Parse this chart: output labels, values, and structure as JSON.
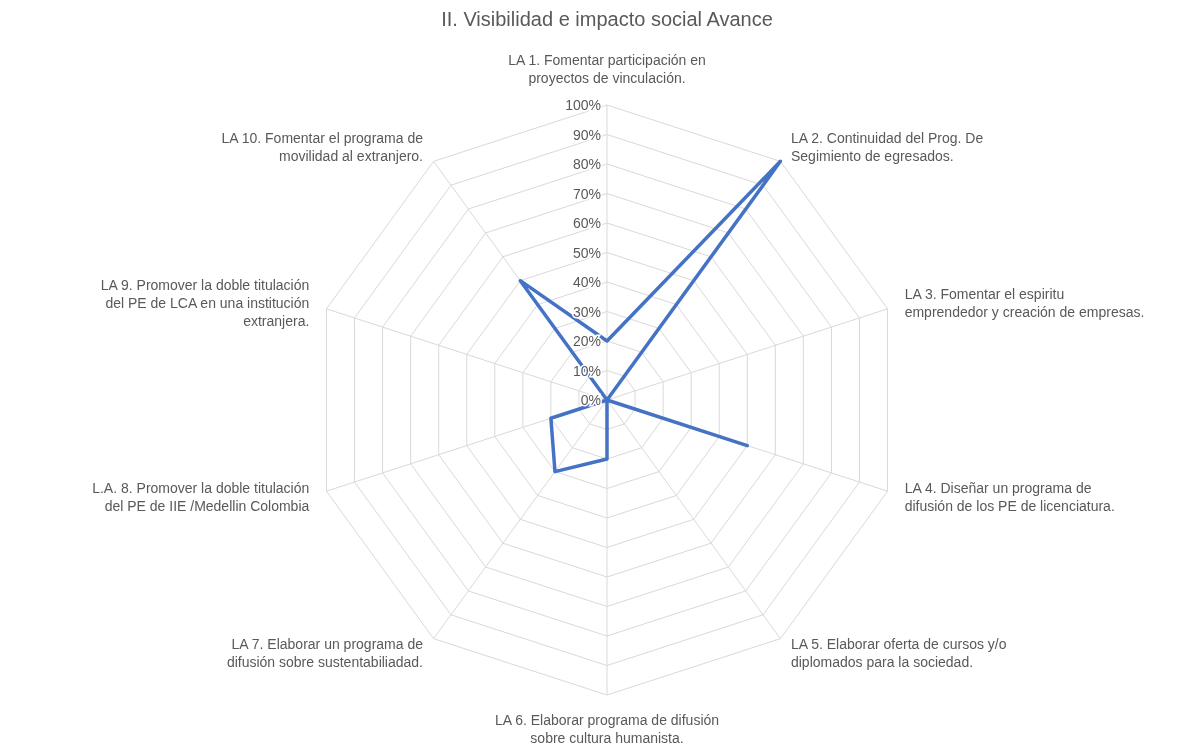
{
  "chart_data": {
    "type": "radar",
    "title": "II. Visibilidad e impacto social Avance",
    "categories": [
      "LA 1. Fomentar participación en proyectos de vinculación.",
      "LA 2. Continuidad del Prog. De Segimiento de egresados.",
      "LA 3. Fomentar el espiritu emprendedor y creación de empresas.",
      "LA 4. Diseñar un programa de difusión de los PE de licenciatura.",
      "LA 5. Elaborar oferta de cursos y/o diplomados para la sociedad.",
      "LA 6. Elaborar programa de difusión sobre cultura humanista.",
      "LA 7. Elaborar un programa de difusión sobre sustentabiliadad.",
      "L.A. 8. Promover la doble titulación del PE de IIE /Medellin Colombia",
      "LA 9. Promover la doble titulación del PE de LCA en una institución extranjera.",
      "LA 10. Fomentar el programa de movilidad al extranjero."
    ],
    "series": [
      {
        "color": "#4472c4",
        "values": [
          20,
          100,
          0,
          50,
          0,
          20,
          30,
          20,
          0,
          50
        ]
      }
    ],
    "ylim": [
      0,
      100
    ],
    "yticks": [
      {
        "value": 0,
        "label": "0%"
      },
      {
        "value": 10,
        "label": "10%"
      },
      {
        "value": 20,
        "label": "20%"
      },
      {
        "value": 30,
        "label": "30%"
      },
      {
        "value": 40,
        "label": "40%"
      },
      {
        "value": 50,
        "label": "50%"
      },
      {
        "value": 60,
        "label": "60%"
      },
      {
        "value": 70,
        "label": "70%"
      },
      {
        "value": 80,
        "label": "80%"
      },
      {
        "value": 90,
        "label": "90%"
      },
      {
        "value": 100,
        "label": "100%"
      }
    ],
    "grid": true
  }
}
